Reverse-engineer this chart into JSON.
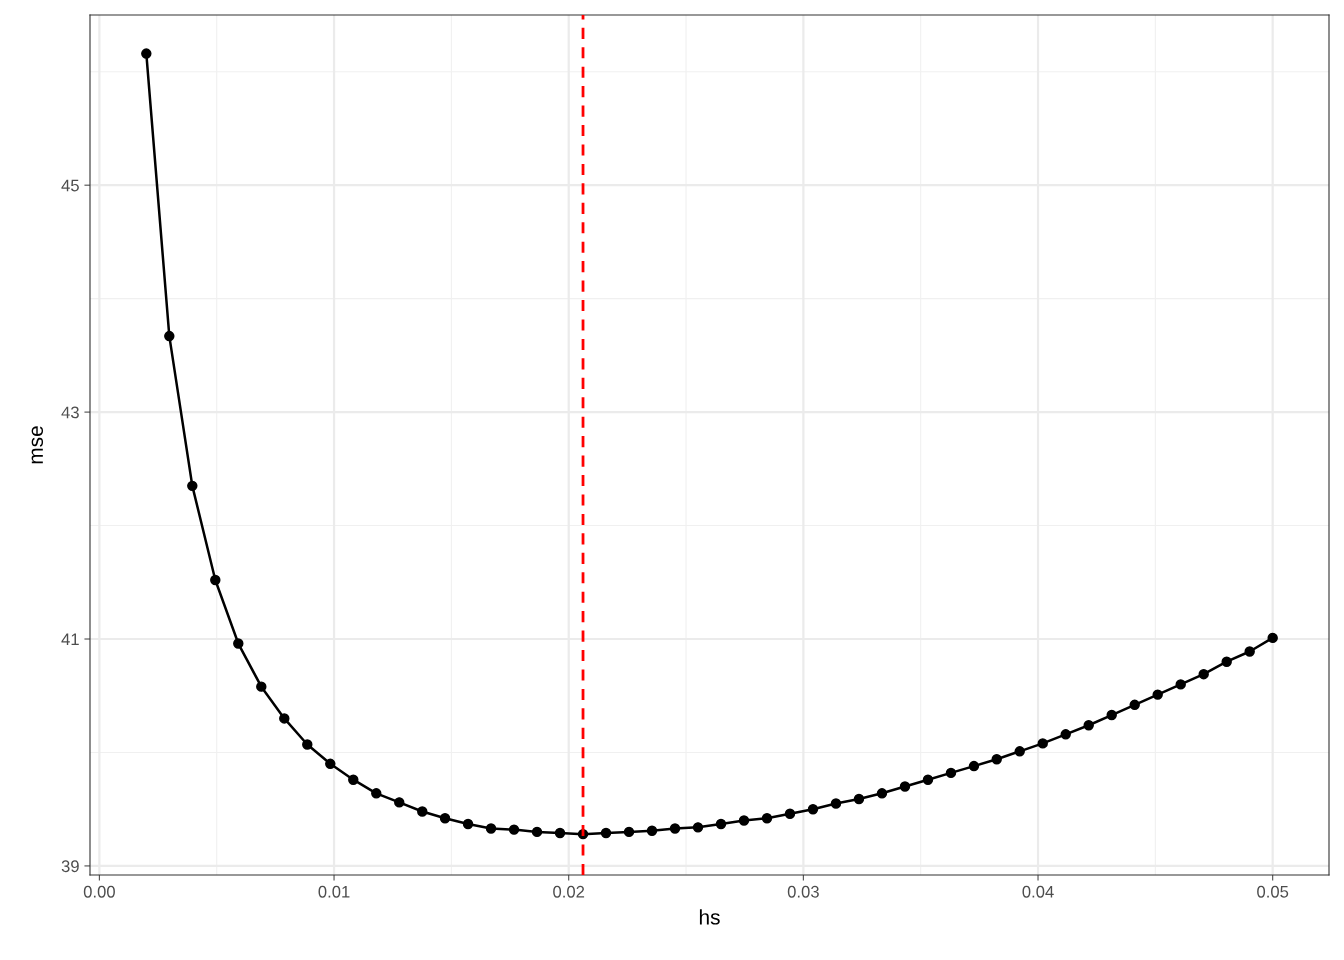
{
  "chart_data": {
    "type": "line",
    "xlabel": "hs",
    "ylabel": "mse",
    "marker": "circle",
    "line_style": "solid",
    "grid": true,
    "x": [
      0.002,
      0.00298,
      0.00396,
      0.00494,
      0.00592,
      0.0069,
      0.00788,
      0.00886,
      0.00984,
      0.01082,
      0.0118,
      0.01278,
      0.01376,
      0.01473,
      0.01571,
      0.01669,
      0.01767,
      0.01865,
      0.01963,
      0.02061,
      0.02159,
      0.02257,
      0.02355,
      0.02453,
      0.02551,
      0.02649,
      0.02747,
      0.02845,
      0.02943,
      0.03041,
      0.03139,
      0.03237,
      0.03335,
      0.03433,
      0.03531,
      0.03629,
      0.03727,
      0.03824,
      0.03922,
      0.0402,
      0.04118,
      0.04216,
      0.04314,
      0.04412,
      0.0451,
      0.04608,
      0.04706,
      0.04804,
      0.04902,
      0.05
    ],
    "series": [
      {
        "color": "#000000",
        "values": [
          46.16,
          43.67,
          42.35,
          41.52,
          40.96,
          40.58,
          40.3,
          40.07,
          39.9,
          39.76,
          39.64,
          39.56,
          39.48,
          39.42,
          39.37,
          39.33,
          39.32,
          39.3,
          39.29,
          39.28,
          39.29,
          39.3,
          39.31,
          39.33,
          39.34,
          39.37,
          39.4,
          39.42,
          39.46,
          39.5,
          39.55,
          39.59,
          39.64,
          39.7,
          39.76,
          39.82,
          39.88,
          39.94,
          40.01,
          40.08,
          40.16,
          40.24,
          40.33,
          40.42,
          40.51,
          40.6,
          40.69,
          40.8,
          40.89,
          41.01
        ]
      }
    ],
    "xlim": [
      -0.0004,
      0.0524
    ],
    "ylim": [
      38.92,
      46.5
    ],
    "xticks": [
      {
        "value": 0,
        "label": "0.00"
      },
      {
        "value": 0.01,
        "label": "0.01"
      },
      {
        "value": 0.02,
        "label": "0.02"
      },
      {
        "value": 0.03,
        "label": "0.03"
      },
      {
        "value": 0.04,
        "label": "0.04"
      },
      {
        "value": 0.05,
        "label": "0.05"
      }
    ],
    "yticks": [
      39,
      41,
      43,
      45
    ],
    "ref_lines": [
      {
        "axis": "x",
        "value": 0.02061,
        "color": "#ff0000",
        "line_style": "dashed"
      }
    ]
  }
}
